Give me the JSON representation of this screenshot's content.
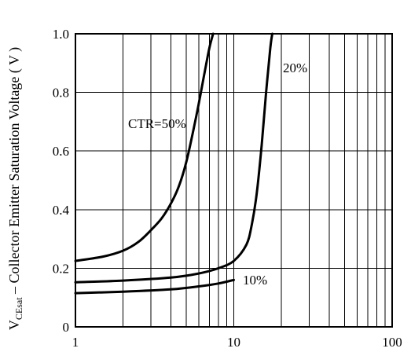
{
  "chart_data": {
    "type": "line",
    "title": "",
    "xlabel": "",
    "ylabel": {
      "symbol": "V",
      "subscript": "CEsat",
      "text": " – Collector Emitter Saturation Voltage ( V )"
    },
    "x_scale": "log",
    "xlim": [
      1,
      100
    ],
    "ylim": [
      0,
      1.0
    ],
    "x_ticks": [
      1,
      10,
      100
    ],
    "x_tick_labels": [
      "1",
      "10",
      "100"
    ],
    "y_ticks": [
      0,
      0.2,
      0.4,
      0.6,
      0.8,
      1.0
    ],
    "y_tick_labels": [
      "0",
      "0.2",
      "0.4",
      "0.6",
      "0.8",
      "1.0"
    ],
    "grid": true,
    "series": [
      {
        "name": "CTR=50%",
        "x": [
          1,
          1.5,
          2,
          2.5,
          3,
          3.5,
          4,
          4.5,
          5,
          5.5,
          6,
          6.5,
          7,
          7.4
        ],
        "y": [
          0.225,
          0.24,
          0.26,
          0.29,
          0.33,
          0.37,
          0.42,
          0.48,
          0.56,
          0.66,
          0.76,
          0.86,
          0.95,
          1.0
        ]
      },
      {
        "name": "20%",
        "x": [
          1,
          2,
          4,
          6,
          8,
          10,
          12,
          13,
          14,
          15,
          16,
          17,
          17.5
        ],
        "y": [
          0.152,
          0.158,
          0.168,
          0.182,
          0.2,
          0.225,
          0.28,
          0.35,
          0.46,
          0.62,
          0.8,
          0.95,
          1.0
        ]
      },
      {
        "name": "10%",
        "x": [
          1,
          2,
          4,
          6,
          8,
          10
        ],
        "y": [
          0.115,
          0.12,
          0.128,
          0.138,
          0.148,
          0.16
        ]
      }
    ]
  }
}
